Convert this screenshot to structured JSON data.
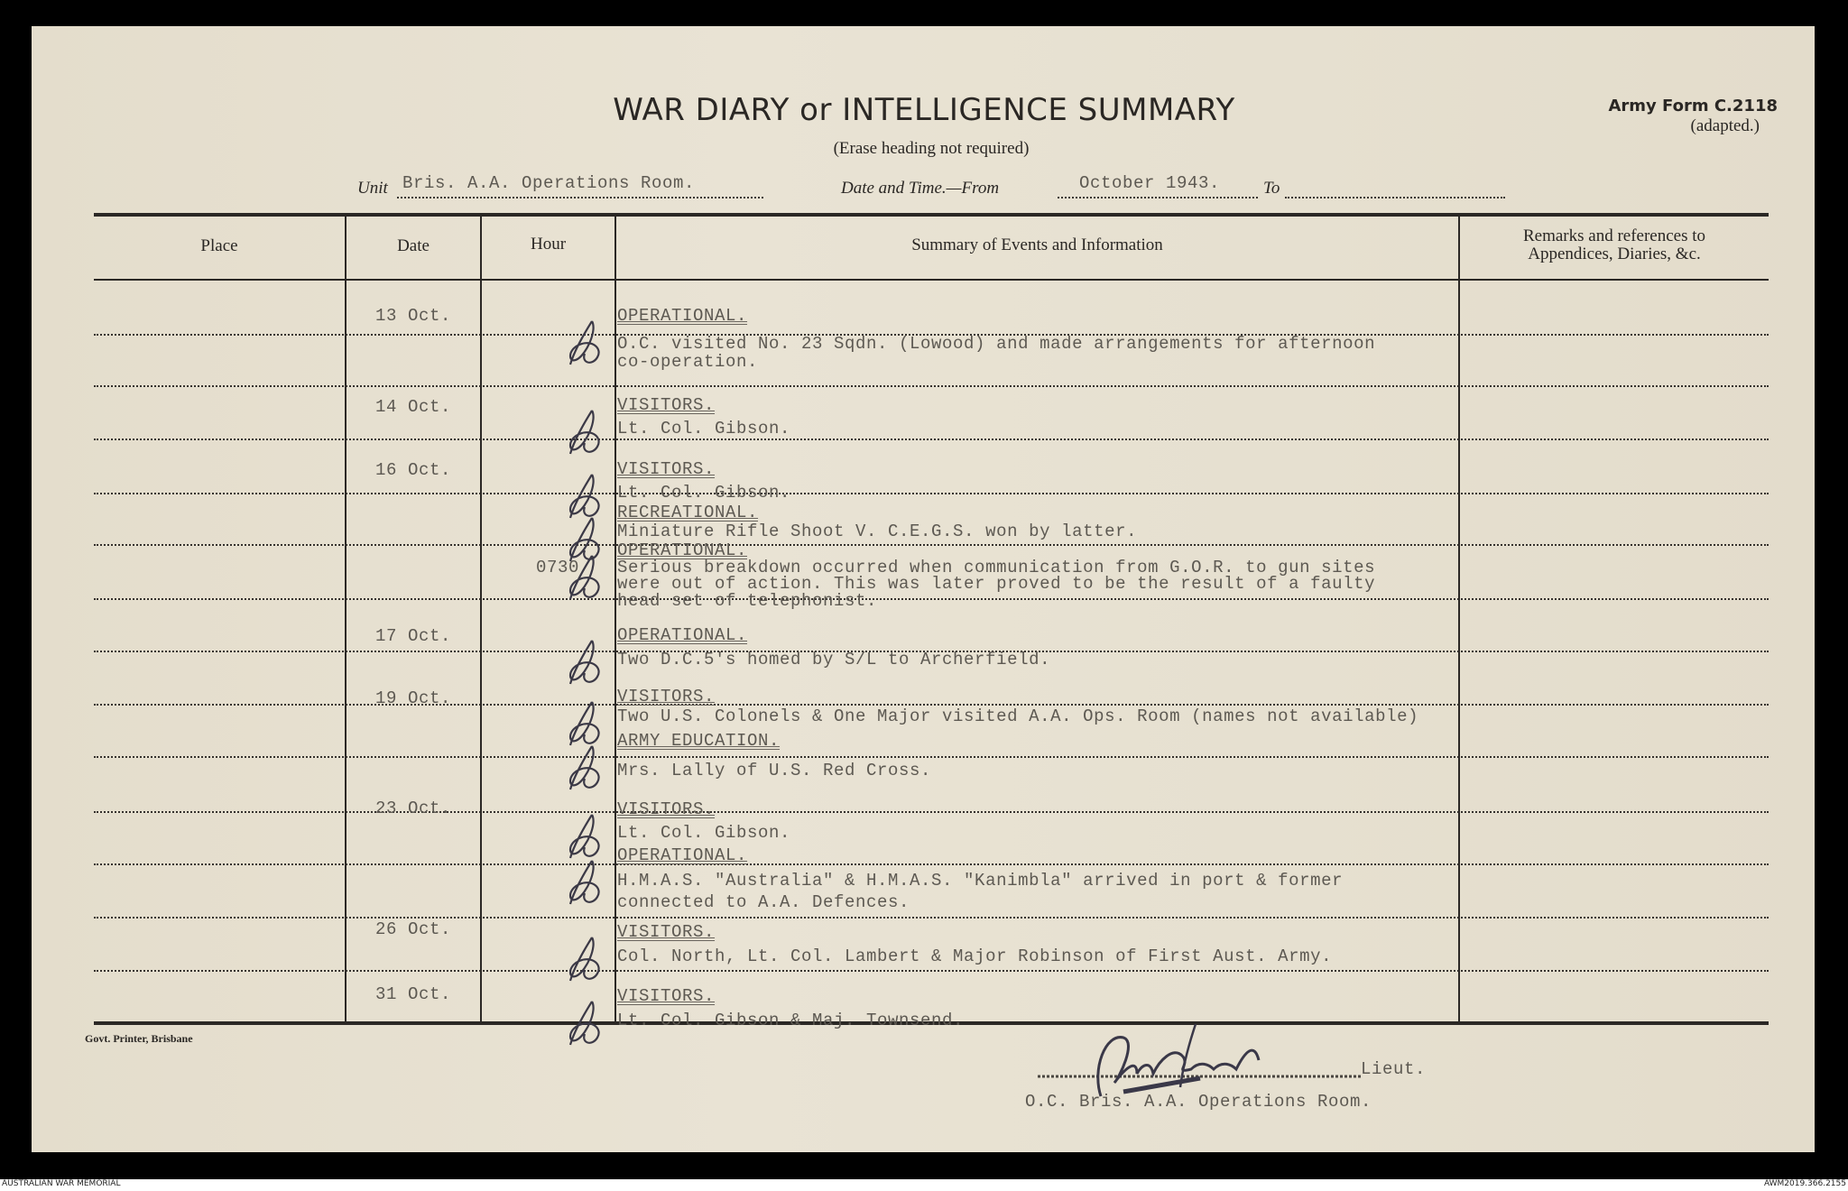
{
  "header": {
    "title": "WAR DIARY or INTELLIGENCE SUMMARY",
    "subtitle": "(Erase heading not required)",
    "form_number": "Army Form C.2118",
    "form_note": "(adapted.)",
    "unit_label": "Unit",
    "unit_value": "Bris. A.A. Operations Room.",
    "date_label": "Date and Time.—From",
    "date_from": "October 1943.",
    "to_label": "To",
    "date_to": ""
  },
  "table": {
    "columns": [
      "Place",
      "Date",
      "Hour",
      "Summary of Events and Information",
      "Remarks and references to",
      "Appendices, Diaries, &c."
    ],
    "entries": [
      {
        "date": "13 Oct.",
        "hour": "",
        "items": [
          {
            "heading": "OPERATIONAL.",
            "lines": [
              "O.C. visited No. 23 Sqdn. (Lowood) and made arrangements for afternoon",
              "co-operation."
            ]
          }
        ]
      },
      {
        "date": "14 Oct.",
        "hour": "",
        "items": [
          {
            "heading": "VISITORS.",
            "lines": [
              "Lt. Col. Gibson."
            ]
          }
        ]
      },
      {
        "date": "16 Oct.",
        "hour": "0730",
        "items": [
          {
            "heading": "VISITORS.",
            "lines": [
              "Lt. Col. Gibson."
            ]
          },
          {
            "heading": "RECREATIONAL.",
            "lines": [
              "Miniature Rifle Shoot  V. C.E.G.S. won by latter."
            ]
          },
          {
            "heading": "OPERATIONAL.",
            "lines": [
              "Serious breakdown occurred when communication from G.O.R. to gun sites",
              "were out of action.  This was later proved to be the result of a faulty",
              "head set of telephonist."
            ]
          }
        ]
      },
      {
        "date": "17 Oct.",
        "hour": "",
        "items": [
          {
            "heading": "OPERATIONAL.",
            "lines": [
              "Two D.C.5's homed by S/L to Archerfield."
            ]
          }
        ]
      },
      {
        "date": "19 Oct.",
        "hour": "",
        "items": [
          {
            "heading": "VISITORS.",
            "lines": [
              "Two U.S. Colonels & One Major visited A.A. Ops. Room (names not available)"
            ]
          },
          {
            "heading": "ARMY EDUCATION.",
            "lines": [
              "Mrs. Lally of U.S. Red Cross."
            ]
          }
        ]
      },
      {
        "date": "23 Oct.",
        "hour": "",
        "items": [
          {
            "heading": "VISITORS.",
            "lines": [
              "Lt. Col. Gibson."
            ]
          },
          {
            "heading": "OPERATIONAL.",
            "lines": [
              "H.M.A.S. \"Australia\" & H.M.A.S. \"Kanimbla\" arrived in port & former",
              "connected to A.A. Defences."
            ]
          }
        ]
      },
      {
        "date": "26 Oct.",
        "hour": "",
        "items": [
          {
            "heading": "VISITORS.",
            "lines": [
              "Col. North, Lt. Col. Lambert & Major Robinson of First Aust. Army."
            ]
          }
        ]
      },
      {
        "date": "31 Oct.",
        "hour": "",
        "items": [
          {
            "heading": "VISITORS.",
            "lines": [
              "Lt. Col. Gibson & Maj. Townsend."
            ]
          }
        ]
      }
    ]
  },
  "footer": {
    "printer": "Govt. Printer, Brisbane",
    "signature": "D.M. Bennett",
    "rank": "Lieut.",
    "position": "O.C. Bris. A.A. Operations Room.",
    "archive_left": "AUSTRALIAN WAR MEMORIAL",
    "archive_right": "AWM2019.366.2155"
  },
  "colors": {
    "paper": "#e6e0d0",
    "ink": "#2a2724",
    "typewriter": "#5d5952"
  }
}
